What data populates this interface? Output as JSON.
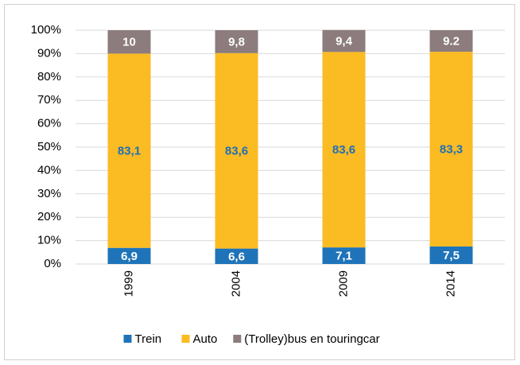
{
  "chart_data": {
    "type": "stacked-bar",
    "categories": [
      "1999",
      "2004",
      "2009",
      "2014"
    ],
    "series": [
      {
        "name": "Trein",
        "color": "#1f74b9",
        "label_color": "#ffffff",
        "values": [
          6.9,
          6.6,
          7.1,
          7.5
        ],
        "value_labels": [
          "6,9",
          "6,6",
          "7,1",
          "7,5"
        ]
      },
      {
        "name": "Auto",
        "color": "#fbbb23",
        "label_color": "#1f6fb5",
        "values": [
          83.1,
          83.6,
          83.6,
          83.3
        ],
        "value_labels": [
          "83,1",
          "83,6",
          "83,6",
          "83,3"
        ]
      },
      {
        "name": "(Trolley)bus en touringcar",
        "color": "#8c7c7d",
        "label_color": "#ffffff",
        "values": [
          10,
          9.8,
          9.4,
          9.2
        ],
        "value_labels": [
          "10",
          "9,8",
          "9,4",
          "9.2"
        ]
      }
    ],
    "ylim": [
      0,
      100
    ],
    "yticks": [
      {
        "value": 0,
        "label": "0%"
      },
      {
        "value": 10,
        "label": "10%"
      },
      {
        "value": 20,
        "label": "20%"
      },
      {
        "value": 30,
        "label": "30%"
      },
      {
        "value": 40,
        "label": "40%"
      },
      {
        "value": 50,
        "label": "50%"
      },
      {
        "value": 60,
        "label": "60%"
      },
      {
        "value": 70,
        "label": "70%"
      },
      {
        "value": 80,
        "label": "80%"
      },
      {
        "value": 90,
        "label": "90%"
      },
      {
        "value": 100,
        "label": "100%"
      }
    ],
    "grid": true,
    "legend": "bottom"
  }
}
